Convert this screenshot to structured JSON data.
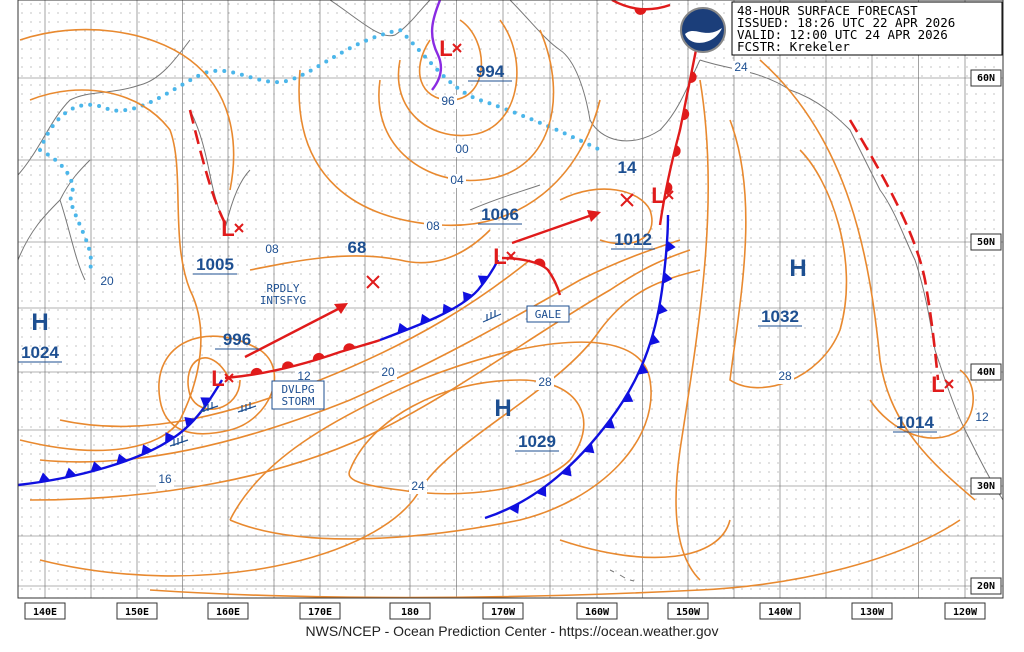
{
  "header": {
    "lines": [
      "48-HOUR SURFACE FORECAST",
      "ISSUED: 18:26 UTC 22 APR 2026",
      "VALID:  12:00 UTC 24 APR 2026",
      "FCSTR:  Krekeler"
    ]
  },
  "systems": [
    {
      "symbol": "H",
      "pressure": "1024"
    },
    {
      "symbol": "L",
      "pressure": "1005"
    },
    {
      "symbol": "L",
      "pressure": "996"
    },
    {
      "symbol": "L",
      "pressure": "994"
    },
    {
      "symbol": "L",
      "pressure": "1006"
    },
    {
      "symbol": "L",
      "pressure": "1012"
    },
    {
      "symbol": "H",
      "pressure": "1032"
    },
    {
      "symbol": "H",
      "pressure": "1029"
    },
    {
      "symbol": "L",
      "pressure": "1014"
    }
  ],
  "forecast_pressures": [
    "68",
    "14"
  ],
  "isobar_labels": [
    "08",
    "20",
    "96",
    "00",
    "04",
    "08",
    "20",
    "12",
    "16",
    "24",
    "28",
    "28",
    "24",
    "12"
  ],
  "annotations": {
    "rapid": [
      "RPDLY",
      "INTSFYG"
    ],
    "storm": [
      "DVLPG",
      "STORM"
    ],
    "gale": "GALE"
  },
  "longitudes": [
    "140E",
    "150E",
    "160E",
    "170E",
    "180",
    "170W",
    "160W",
    "150W",
    "140W",
    "130W",
    "120W"
  ],
  "latitudes": [
    "60N",
    "50N",
    "40N",
    "30N",
    "20N"
  ],
  "footer": "NWS/NCEP - Ocean Prediction Center - https://ocean.weather.gov"
}
